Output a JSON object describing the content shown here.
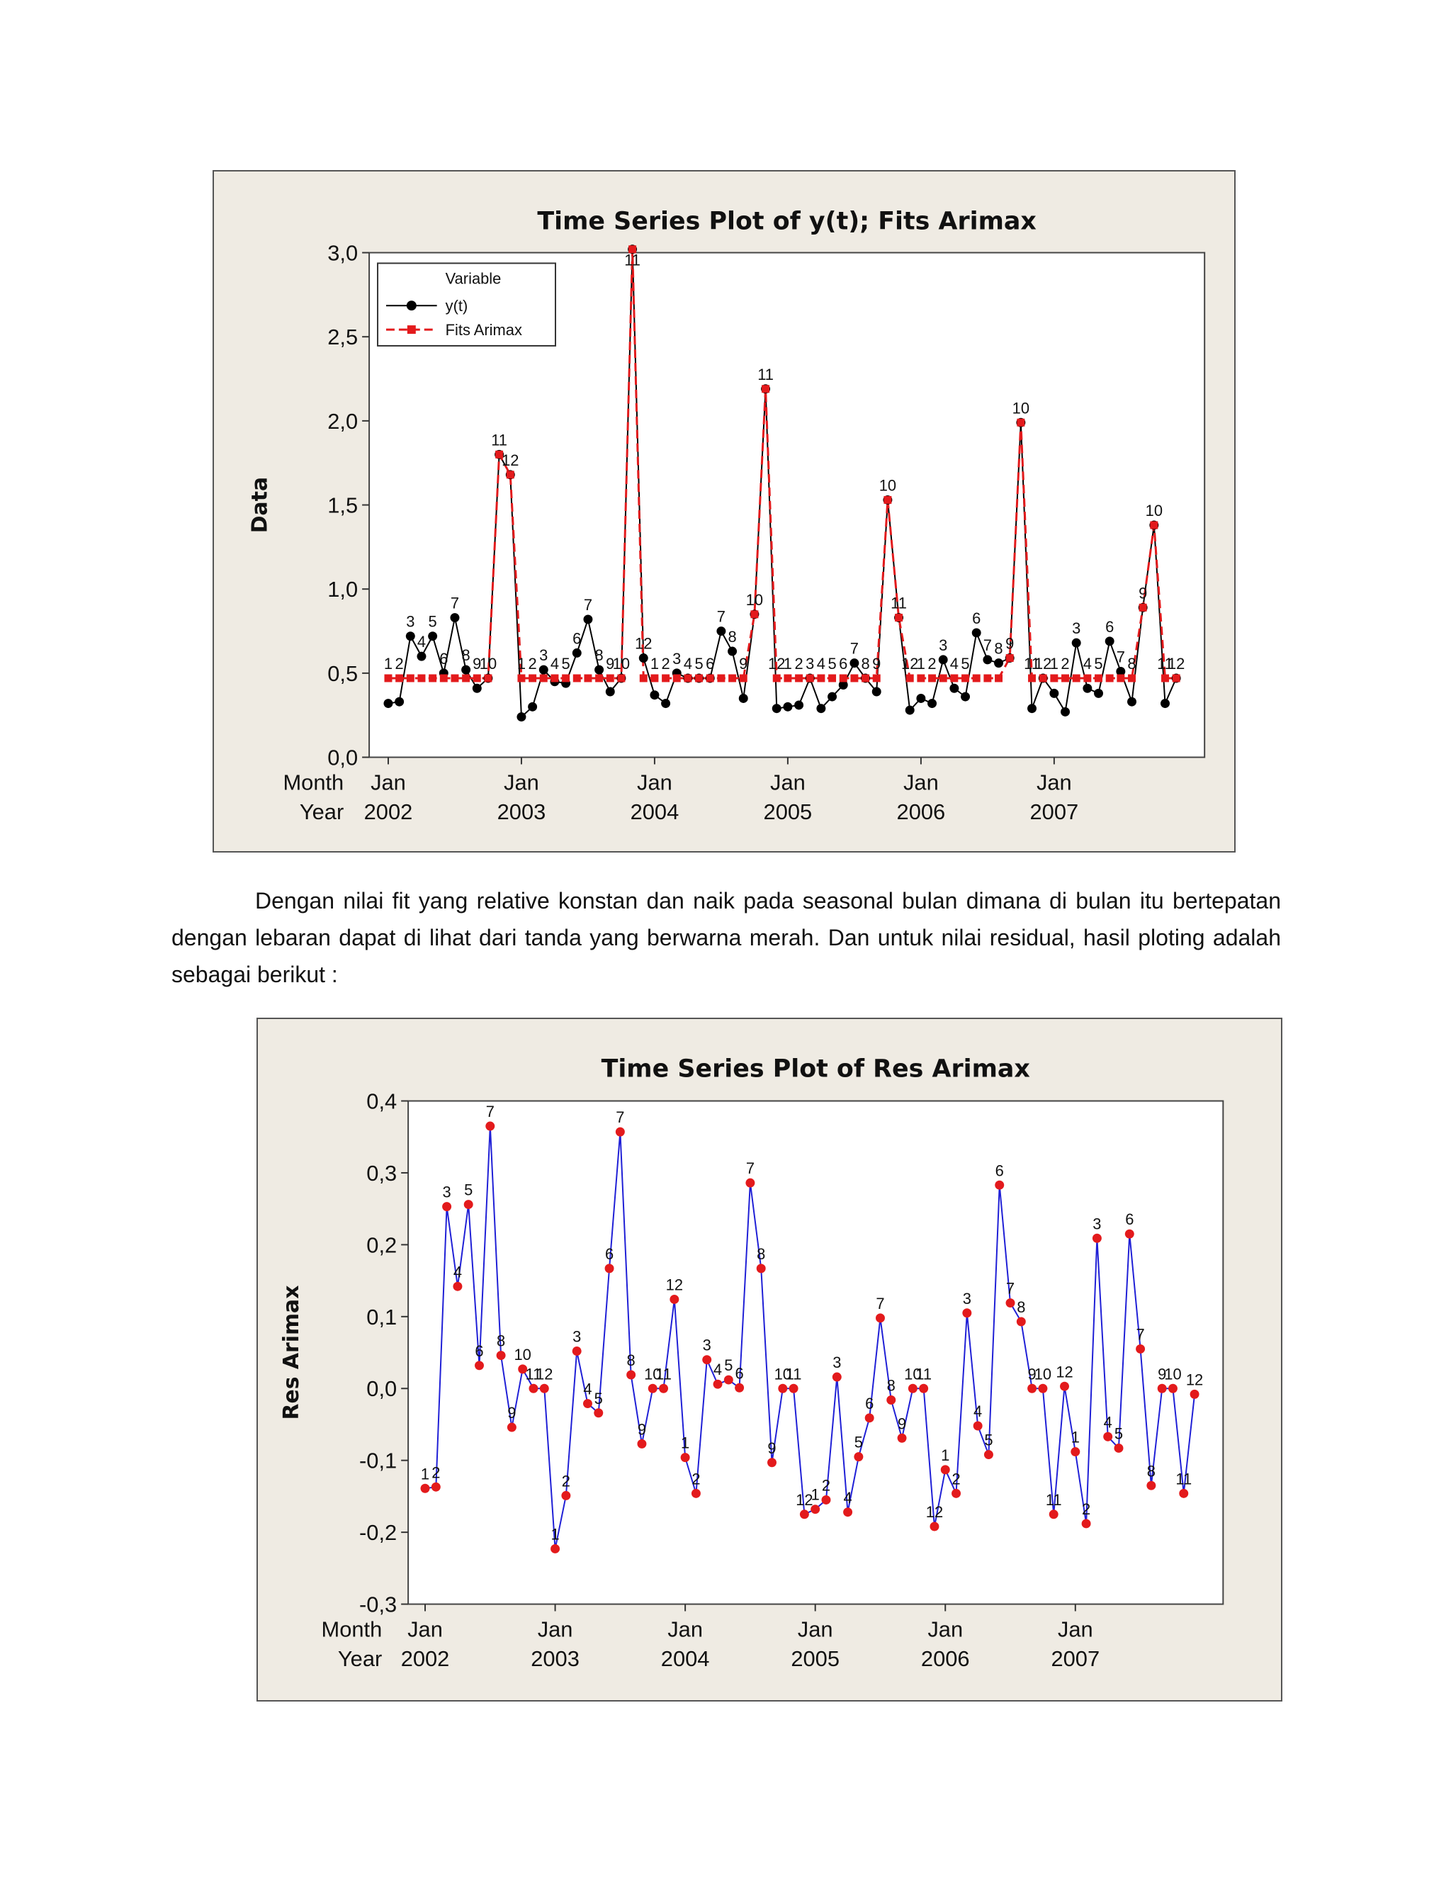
{
  "paragraph": "Dengan nilai fit yang relative konstan dan naik pada seasonal bulan dimana di bulan itu bertepatan dengan lebaran dapat di lihat dari tanda yang berwarna merah. Dan untuk nilai residual, hasil ploting adalah sebagai berikut :",
  "colors": {
    "frame_bg": "#efebe3",
    "plot_bg": "#ffffff",
    "y_series": "#000000",
    "fits_series": "#e31a1c",
    "res_line": "#1f1fd6",
    "res_marker": "#e31a1c"
  },
  "chart_data": [
    {
      "type": "line",
      "title": "Time Series Plot of y(t); Fits Arimax",
      "ylabel": "Data",
      "axis_row_labels": [
        "Month",
        "Year"
      ],
      "ylim": [
        0,
        3.0
      ],
      "yticks": [
        "0,0",
        "0,5",
        "1,0",
        "1,5",
        "2,0",
        "2,5",
        "3,0"
      ],
      "x_ticks": [
        {
          "month": "Jan",
          "year": "2002",
          "index": 0
        },
        {
          "month": "Jan",
          "year": "2003",
          "index": 12
        },
        {
          "month": "Jan",
          "year": "2004",
          "index": 24
        },
        {
          "month": "Jan",
          "year": "2005",
          "index": 36
        },
        {
          "month": "Jan",
          "year": "2006",
          "index": 48
        },
        {
          "month": "Jan",
          "year": "2007",
          "index": 60
        }
      ],
      "legend": {
        "title": "Variable",
        "position": "top-left"
      },
      "point_labels": [
        "1",
        "2",
        "3",
        "4",
        "5",
        "6",
        "7",
        "8",
        "9",
        "10",
        "11",
        "12",
        "1",
        "2",
        "3",
        "4",
        "5",
        "6",
        "7",
        "8",
        "9",
        "10",
        "11",
        "12",
        "1",
        "2",
        "3",
        "4",
        "5",
        "6",
        "7",
        "8",
        "9",
        "10",
        "11",
        "12",
        "1",
        "2",
        "3",
        "4",
        "5",
        "6",
        "7",
        "8",
        "9",
        "10",
        "11",
        "12",
        "1",
        "2",
        "3",
        "4",
        "5",
        "6",
        "7",
        "8",
        "9",
        "10",
        "11",
        "12",
        "1",
        "2",
        "3",
        "4",
        "5",
        "6",
        "7",
        "8",
        "9",
        "10",
        "11",
        "12"
      ],
      "series": [
        {
          "name": "y(t)",
          "style": "solid-black-circle",
          "values": [
            0.32,
            0.33,
            0.72,
            0.6,
            0.72,
            0.5,
            0.83,
            0.52,
            0.41,
            0.47,
            1.8,
            1.68,
            0.24,
            0.3,
            0.52,
            0.45,
            0.44,
            0.62,
            0.82,
            0.52,
            0.39,
            0.47,
            3.02,
            0.59,
            0.37,
            0.32,
            0.5,
            0.47,
            0.47,
            0.47,
            0.75,
            0.63,
            0.35,
            0.85,
            2.19,
            0.29,
            0.3,
            0.31,
            0.47,
            0.29,
            0.36,
            0.43,
            0.56,
            0.47,
            0.39,
            1.53,
            0.83,
            0.28,
            0.35,
            0.32,
            0.58,
            0.41,
            0.36,
            0.74,
            0.58,
            0.56,
            0.59,
            1.99,
            0.29,
            0.47,
            0.38,
            0.27,
            0.68,
            0.41,
            0.38,
            0.69,
            0.51,
            0.33,
            0.89,
            1.38,
            0.32,
            0.47
          ]
        },
        {
          "name": "Fits Arimax",
          "style": "dashed-red-square",
          "values": [
            0.47,
            0.47,
            0.47,
            0.47,
            0.47,
            0.47,
            0.47,
            0.47,
            0.47,
            0.47,
            1.8,
            1.68,
            0.47,
            0.47,
            0.47,
            0.47,
            0.47,
            0.47,
            0.47,
            0.47,
            0.47,
            0.47,
            3.02,
            0.47,
            0.47,
            0.47,
            0.47,
            0.47,
            0.47,
            0.47,
            0.47,
            0.47,
            0.47,
            0.85,
            2.19,
            0.47,
            0.47,
            0.47,
            0.47,
            0.47,
            0.47,
            0.47,
            0.47,
            0.47,
            0.47,
            1.53,
            0.83,
            0.47,
            0.47,
            0.47,
            0.47,
            0.47,
            0.47,
            0.47,
            0.47,
            0.47,
            0.59,
            1.99,
            0.47,
            0.47,
            0.47,
            0.47,
            0.47,
            0.47,
            0.47,
            0.47,
            0.47,
            0.47,
            0.89,
            1.38,
            0.47,
            0.47
          ]
        }
      ]
    },
    {
      "type": "line",
      "title": "Time Series Plot of Res Arimax",
      "ylabel": "Res Arimax",
      "axis_row_labels": [
        "Month",
        "Year"
      ],
      "ylim": [
        -0.3,
        0.4
      ],
      "yticks": [
        "-0,3",
        "-0,2",
        "-0,1",
        "0,0",
        "0,1",
        "0,2",
        "0,3",
        "0,4"
      ],
      "x_ticks": [
        {
          "month": "Jan",
          "year": "2002",
          "index": 0
        },
        {
          "month": "Jan",
          "year": "2003",
          "index": 12
        },
        {
          "month": "Jan",
          "year": "2004",
          "index": 24
        },
        {
          "month": "Jan",
          "year": "2005",
          "index": 36
        },
        {
          "month": "Jan",
          "year": "2006",
          "index": 48
        },
        {
          "month": "Jan",
          "year": "2007",
          "index": 60
        }
      ],
      "point_labels": [
        "1",
        "2",
        "3",
        "4",
        "5",
        "6",
        "7",
        "8",
        "9",
        "10",
        "11",
        "12",
        "1",
        "2",
        "3",
        "4",
        "5",
        "6",
        "7",
        "8",
        "9",
        "10",
        "11",
        "12",
        "1",
        "2",
        "3",
        "4",
        "5",
        "6",
        "7",
        "8",
        "9",
        "10",
        "11",
        "12",
        "1",
        "2",
        "3",
        "4",
        "5",
        "6",
        "7",
        "8",
        "9",
        "10",
        "11",
        "12",
        "1",
        "2",
        "3",
        "4",
        "5",
        "6",
        "7",
        "8",
        "9",
        "10",
        "11",
        "12",
        "1",
        "2",
        "3",
        "4",
        "5",
        "6",
        "7",
        "8",
        "9",
        "10",
        "11",
        "12"
      ],
      "series": [
        {
          "name": "Res Arimax",
          "style": "solid-blue-red-dot",
          "values": [
            -0.139,
            -0.137,
            0.253,
            0.142,
            0.256,
            0.032,
            0.365,
            0.046,
            -0.054,
            0.027,
            0.0,
            0.0,
            -0.223,
            -0.149,
            0.052,
            -0.021,
            -0.034,
            0.167,
            0.357,
            0.019,
            -0.077,
            0.0,
            0.0,
            0.124,
            -0.096,
            -0.146,
            0.04,
            0.006,
            0.012,
            0.001,
            0.286,
            0.167,
            -0.103,
            0.0,
            0.0,
            -0.175,
            -0.168,
            -0.155,
            0.016,
            -0.172,
            -0.095,
            -0.041,
            0.098,
            -0.016,
            -0.069,
            0.0,
            0.0,
            -0.192,
            -0.113,
            -0.146,
            0.105,
            -0.052,
            -0.092,
            0.283,
            0.119,
            0.093,
            0.0,
            0.0,
            -0.175,
            0.003,
            -0.088,
            -0.188,
            0.209,
            -0.067,
            -0.083,
            0.215,
            0.055,
            -0.135,
            0.0,
            0.0,
            -0.146,
            -0.008
          ]
        }
      ]
    }
  ]
}
